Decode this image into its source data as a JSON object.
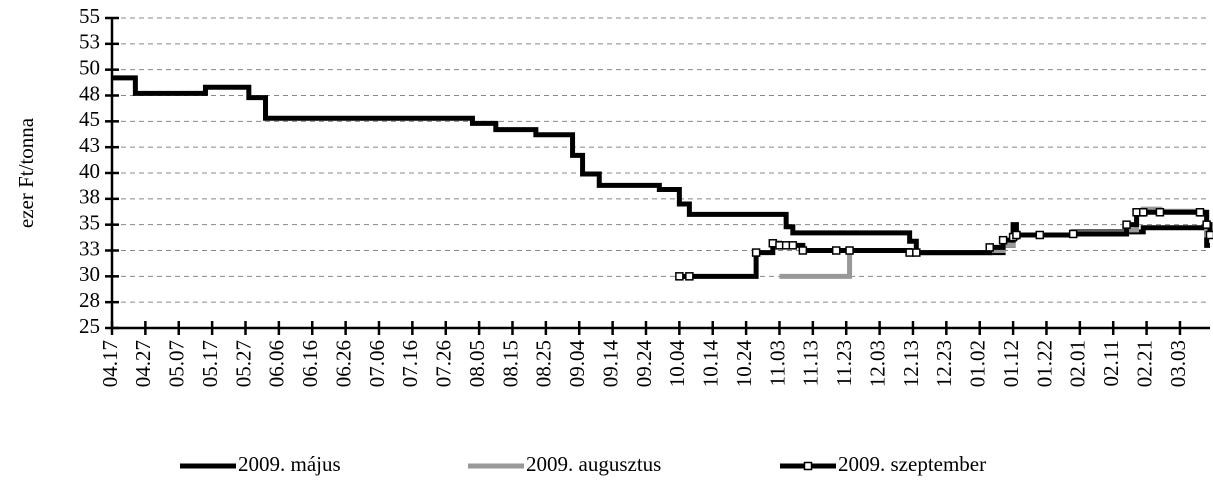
{
  "chart_data": {
    "type": "line",
    "step": "post",
    "y_label": "ezer Ft/tonna",
    "x": [
      "04.17",
      "04.24",
      "05.15",
      "05.28",
      "06.02",
      "08.03",
      "08.10",
      "08.22",
      "09.02",
      "09.05",
      "09.10",
      "09.28",
      "10.04",
      "10.07",
      "10.27",
      "11.01",
      "11.03",
      "11.05",
      "11.07",
      "11.10",
      "11.20",
      "11.24",
      "12.12",
      "12.14",
      "01.05",
      "01.09",
      "01.12",
      "01.13",
      "01.20",
      "01.30",
      "02.15",
      "02.18",
      "02.20",
      "02.25",
      "03.09",
      "03.11",
      "03.12"
    ],
    "xlim": [
      "04.17",
      "03.12"
    ],
    "xticks": [
      "04.17",
      "04.27",
      "05.07",
      "05.17",
      "05.27",
      "06.06",
      "06.16",
      "06.26",
      "07.06",
      "07.16",
      "07.26",
      "08.05",
      "08.15",
      "08.25",
      "09.04",
      "09.14",
      "09.24",
      "10.04",
      "10.14",
      "10.24",
      "11.03",
      "11.13",
      "11.23",
      "12.03",
      "12.13",
      "12.23",
      "01.02",
      "01.12",
      "01.22",
      "02.01",
      "02.11",
      "02.21",
      "03.03"
    ],
    "ylim": [
      25,
      55
    ],
    "yticks": [
      25,
      {
        "value": 27.5,
        "label": "28"
      },
      30,
      {
        "value": 32.5,
        "label": "33"
      },
      35,
      {
        "value": 37.5,
        "label": "38"
      },
      40,
      {
        "value": 42.5,
        "label": "43"
      },
      45,
      {
        "value": 47.5,
        "label": "48"
      },
      50,
      {
        "value": 52.5,
        "label": "53"
      },
      55
    ],
    "grid": true,
    "legend": "bottom",
    "series": [
      {
        "name": "2009. május",
        "color": "#000000",
        "marker": "none",
        "values": [
          49.2,
          47.7,
          48.3,
          47.3,
          45.3,
          44.8,
          44.2,
          43.7,
          41.7,
          39.9,
          38.8,
          38.4,
          37,
          36,
          36,
          36,
          36,
          34.8,
          34.2,
          34.2,
          34.2,
          34.2,
          33.4,
          32.3,
          32.3,
          33,
          35,
          34,
          34,
          34.3,
          34.3,
          34.3,
          34.7,
          34.7,
          34.7,
          33,
          33
        ]
      },
      {
        "name": "2009. augusztus",
        "color": "#999999",
        "marker": "none",
        "values": [
          null,
          null,
          null,
          null,
          null,
          null,
          null,
          null,
          null,
          null,
          null,
          null,
          null,
          null,
          null,
          null,
          30,
          30,
          30,
          30,
          30,
          32.5,
          32.3,
          32.3,
          32.5,
          33,
          33.8,
          34,
          34,
          34.2,
          34.5,
          36,
          36.5,
          36.3,
          36,
          34,
          34
        ]
      },
      {
        "name": "2009. szeptember",
        "color": "#000000",
        "marker": "square",
        "values": [
          null,
          null,
          null,
          null,
          null,
          null,
          null,
          null,
          null,
          null,
          null,
          null,
          30,
          30,
          32.3,
          33.2,
          33,
          33,
          33,
          32.5,
          32.5,
          32.5,
          32.3,
          32.3,
          32.8,
          33.5,
          33.8,
          34,
          34,
          34.1,
          35,
          36.2,
          36.2,
          36.2,
          36.2,
          35,
          34
        ]
      }
    ]
  }
}
